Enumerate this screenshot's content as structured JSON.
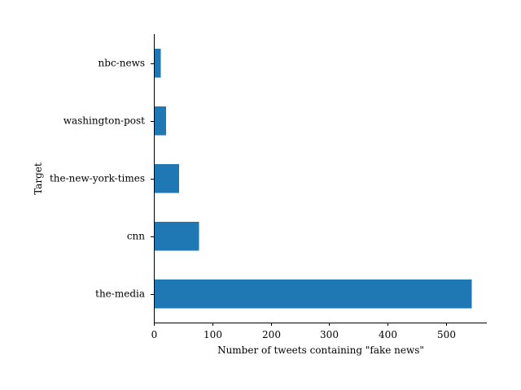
{
  "chart_data": {
    "type": "bar",
    "orientation": "horizontal",
    "categories": [
      "the-media",
      "cnn",
      "the-new-york-times",
      "washington-post",
      "nbc-news"
    ],
    "values": [
      544,
      77,
      43,
      21,
      12
    ],
    "xlabel": "Number of tweets containing \"fake news\"",
    "ylabel": "Target",
    "xlim": [
      0,
      570
    ],
    "xticks": [
      0,
      100,
      200,
      300,
      400,
      500
    ],
    "bar_color": "#1f77b4",
    "grid": false,
    "legend": "none"
  }
}
